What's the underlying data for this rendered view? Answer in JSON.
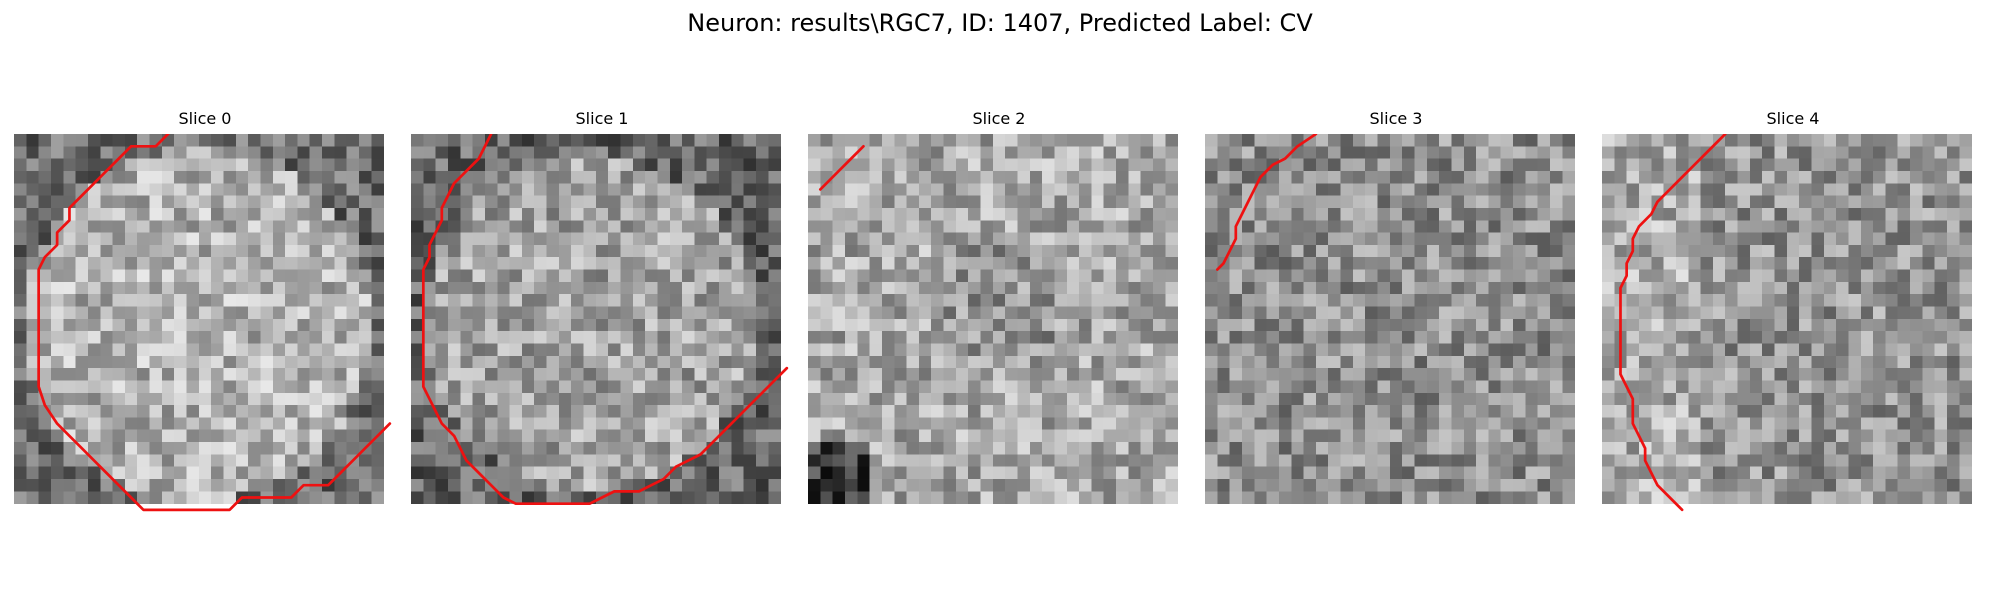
{
  "figure": {
    "title": "Neuron: results\\RGC7, ID: 1407, Predicted Label: CV"
  },
  "panels": [
    {
      "title": "Slice 0",
      "contour": [
        [
          12,
          -0.5
        ],
        [
          11,
          0.5
        ],
        [
          9,
          0.5
        ],
        [
          8,
          1.5
        ],
        [
          7,
          2.5
        ],
        [
          6,
          3.5
        ],
        [
          5,
          4.5
        ],
        [
          4,
          5.5
        ],
        [
          4,
          6.5
        ],
        [
          3,
          7.5
        ],
        [
          3,
          8.5
        ],
        [
          2,
          9.5
        ],
        [
          1.5,
          10.5
        ],
        [
          1.5,
          12
        ],
        [
          1.5,
          14
        ],
        [
          1.5,
          16
        ],
        [
          1.5,
          18
        ],
        [
          1.5,
          20
        ],
        [
          2,
          21.5
        ],
        [
          3,
          23
        ],
        [
          4,
          24
        ],
        [
          5,
          25
        ],
        [
          6,
          26
        ],
        [
          7,
          27
        ],
        [
          8,
          28
        ],
        [
          9,
          29
        ],
        [
          10,
          30
        ],
        [
          12,
          30
        ],
        [
          14,
          30
        ],
        [
          16,
          30
        ],
        [
          17,
          30
        ],
        [
          18,
          29
        ],
        [
          19,
          29
        ],
        [
          20,
          29
        ],
        [
          21,
          29
        ],
        [
          22,
          29
        ],
        [
          23,
          28
        ],
        [
          25,
          28
        ],
        [
          26,
          27
        ],
        [
          27,
          26
        ],
        [
          28,
          25
        ],
        [
          29,
          24
        ],
        [
          30,
          23
        ]
      ]
    },
    {
      "title": "Slice 1",
      "contour": [
        [
          6,
          -0.5
        ],
        [
          5,
          1.5
        ],
        [
          4,
          2.5
        ],
        [
          3,
          3.5
        ],
        [
          2.5,
          4.5
        ],
        [
          2,
          5.5
        ],
        [
          2,
          6.5
        ],
        [
          1.5,
          7.5
        ],
        [
          1,
          8.5
        ],
        [
          1,
          9.5
        ],
        [
          0.5,
          10.5
        ],
        [
          0.5,
          12
        ],
        [
          0.5,
          14
        ],
        [
          0.5,
          16
        ],
        [
          0.5,
          18
        ],
        [
          0.5,
          20
        ],
        [
          1,
          21
        ],
        [
          1.5,
          22
        ],
        [
          2,
          23
        ],
        [
          3,
          24
        ],
        [
          3.5,
          25
        ],
        [
          4,
          26
        ],
        [
          5,
          27
        ],
        [
          6,
          28
        ],
        [
          7,
          29
        ],
        [
          8,
          29.5
        ],
        [
          10,
          29.5
        ],
        [
          12,
          29.5
        ],
        [
          14,
          29.5
        ],
        [
          15,
          29
        ],
        [
          16,
          28.5
        ],
        [
          18,
          28.5
        ],
        [
          19,
          28
        ],
        [
          20,
          27.5
        ],
        [
          21,
          26.5
        ],
        [
          22,
          26
        ],
        [
          23,
          25.5
        ],
        [
          24,
          24.5
        ],
        [
          25,
          23.5
        ],
        [
          26,
          22.5
        ],
        [
          27,
          21.5
        ],
        [
          28,
          20.5
        ],
        [
          29,
          19.5
        ],
        [
          30,
          18.5
        ]
      ]
    },
    {
      "title": "Slice 2",
      "contour": [
        [
          0.5,
          4
        ],
        [
          1,
          3.5
        ],
        [
          2,
          2.5
        ],
        [
          3,
          1.5
        ],
        [
          4,
          0.5
        ]
      ]
    },
    {
      "title": "Slice 3",
      "contour": [
        [
          8.5,
          -0.5
        ],
        [
          7,
          0.5
        ],
        [
          6,
          1.5
        ],
        [
          5,
          2
        ],
        [
          4,
          3
        ],
        [
          3.5,
          4
        ],
        [
          3,
          5
        ],
        [
          2.5,
          6
        ],
        [
          2,
          7
        ],
        [
          2,
          8
        ],
        [
          1.5,
          9
        ],
        [
          1,
          10
        ],
        [
          0.5,
          10.5
        ]
      ]
    },
    {
      "title": "Slice 4",
      "contour": [
        [
          9.5,
          -0.5
        ],
        [
          8,
          1
        ],
        [
          7,
          2
        ],
        [
          6,
          3
        ],
        [
          5,
          4
        ],
        [
          4,
          5
        ],
        [
          3.5,
          6
        ],
        [
          2.5,
          7
        ],
        [
          2,
          8
        ],
        [
          2,
          9
        ],
        [
          1.5,
          10
        ],
        [
          1.5,
          11
        ],
        [
          1,
          12
        ],
        [
          1,
          13
        ],
        [
          1,
          14
        ],
        [
          1,
          15
        ],
        [
          1,
          16
        ],
        [
          1,
          17
        ],
        [
          1,
          18
        ],
        [
          1,
          19
        ],
        [
          1.5,
          20
        ],
        [
          2,
          21
        ],
        [
          2,
          22
        ],
        [
          2,
          23
        ],
        [
          2.5,
          24
        ],
        [
          3,
          25
        ],
        [
          3,
          26
        ],
        [
          3.5,
          27
        ],
        [
          4,
          28
        ],
        [
          5,
          29
        ],
        [
          6,
          30
        ]
      ]
    }
  ]
}
